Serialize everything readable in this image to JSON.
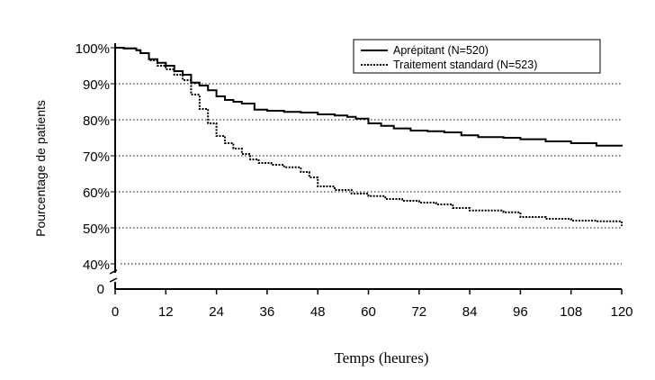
{
  "chart_data": {
    "type": "line",
    "title": "",
    "xlabel": "Temps (heures)",
    "ylabel": "Pourcentage de patients",
    "xlim": [
      0,
      120
    ],
    "x_ticks": [
      "0",
      "12",
      "24",
      "36",
      "48",
      "60",
      "72",
      "84",
      "96",
      "108",
      "120"
    ],
    "ylim": [
      40,
      100
    ],
    "y_ticks": [
      "40%",
      "50%",
      "60%",
      "70%",
      "80%",
      "90%",
      "100%"
    ],
    "y_zero_label": "0",
    "axis_break": true,
    "grid": "horizontal dotted",
    "legend_position": "top-right",
    "series": [
      {
        "name": "Aprépitant (N=520)",
        "style": "solid",
        "color": "#000000",
        "points": [
          [
            0,
            100
          ],
          [
            2,
            99.8
          ],
          [
            5,
            99.3
          ],
          [
            6,
            98.5
          ],
          [
            8,
            96.8
          ],
          [
            10,
            95.8
          ],
          [
            12,
            95
          ],
          [
            14,
            93.5
          ],
          [
            16,
            92.5
          ],
          [
            18,
            90.3
          ],
          [
            20,
            89.5
          ],
          [
            22,
            88.2
          ],
          [
            24,
            86.5
          ],
          [
            26,
            85.5
          ],
          [
            28,
            85
          ],
          [
            30,
            84.5
          ],
          [
            33,
            82.8
          ],
          [
            36,
            82.5
          ],
          [
            40,
            82.2
          ],
          [
            44,
            82
          ],
          [
            48,
            81.5
          ],
          [
            52,
            81.2
          ],
          [
            55,
            80.8
          ],
          [
            57,
            80.3
          ],
          [
            60,
            79
          ],
          [
            63,
            78.3
          ],
          [
            66,
            77.6
          ],
          [
            70,
            77
          ],
          [
            74,
            76.8
          ],
          [
            78,
            76.5
          ],
          [
            82,
            75.7
          ],
          [
            86,
            75.2
          ],
          [
            92,
            75
          ],
          [
            96,
            74.6
          ],
          [
            102,
            74
          ],
          [
            108,
            73.5
          ],
          [
            114,
            72.8
          ],
          [
            120,
            72.6
          ]
        ]
      },
      {
        "name": "Traitement standard (N=523)",
        "style": "dotted",
        "color": "#000000",
        "points": [
          [
            0,
            100
          ],
          [
            2,
            99.8
          ],
          [
            5,
            99.3
          ],
          [
            6,
            98.5
          ],
          [
            8,
            96.5
          ],
          [
            10,
            95
          ],
          [
            12,
            94
          ],
          [
            14,
            92.5
          ],
          [
            16,
            91
          ],
          [
            18,
            87
          ],
          [
            20,
            83
          ],
          [
            22,
            79
          ],
          [
            24,
            75.5
          ],
          [
            26,
            73.5
          ],
          [
            28,
            72
          ],
          [
            30,
            70.5
          ],
          [
            32,
            69
          ],
          [
            34,
            68
          ],
          [
            37,
            67.5
          ],
          [
            40,
            66.8
          ],
          [
            44,
            65.5
          ],
          [
            46,
            64
          ],
          [
            48,
            61.5
          ],
          [
            52,
            60.5
          ],
          [
            56,
            59.5
          ],
          [
            60,
            58.8
          ],
          [
            64,
            58
          ],
          [
            68,
            57.5
          ],
          [
            72,
            57
          ],
          [
            76,
            56.5
          ],
          [
            80,
            55.5
          ],
          [
            84,
            54.8
          ],
          [
            88,
            54.8
          ],
          [
            92,
            54.3
          ],
          [
            96,
            53
          ],
          [
            102,
            52.5
          ],
          [
            108,
            52
          ],
          [
            114,
            51.8
          ],
          [
            120,
            50.5
          ]
        ]
      }
    ]
  }
}
